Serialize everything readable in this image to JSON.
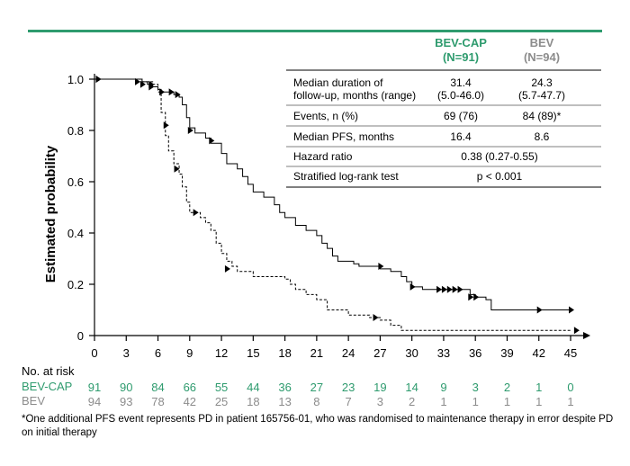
{
  "colors": {
    "bevcap": "#2e9b6e",
    "bev": "#8c8c8c",
    "rule": "#2e9b6e"
  },
  "chart_data": {
    "type": "line",
    "ylabel": "Estimated probability",
    "xlim": [
      0,
      45
    ],
    "ylim": [
      0,
      1.0
    ],
    "x_ticks": [
      "0",
      "3",
      "6",
      "9",
      "12",
      "15",
      "18",
      "21",
      "24",
      "27",
      "30",
      "33",
      "36",
      "39",
      "42",
      "45"
    ],
    "y_ticks": [
      "0",
      "0.2",
      "0.4",
      "0.6",
      "0.8",
      "1.0"
    ],
    "series": [
      {
        "name": "BEV-CAP",
        "style": "solid",
        "points": [
          [
            0,
            1.0
          ],
          [
            4,
            1.0
          ],
          [
            4.5,
            0.99
          ],
          [
            5,
            0.98
          ],
          [
            5.5,
            0.97
          ],
          [
            6,
            0.96
          ],
          [
            6.3,
            0.95
          ],
          [
            7,
            0.95
          ],
          [
            7.5,
            0.94
          ],
          [
            8,
            0.93
          ],
          [
            8.3,
            0.9
          ],
          [
            8.7,
            0.85
          ],
          [
            9,
            0.81
          ],
          [
            9.5,
            0.79
          ],
          [
            10.5,
            0.77
          ],
          [
            11,
            0.75
          ],
          [
            12,
            0.71
          ],
          [
            12.5,
            0.67
          ],
          [
            13.5,
            0.65
          ],
          [
            14,
            0.62
          ],
          [
            14.5,
            0.59
          ],
          [
            15,
            0.56
          ],
          [
            16,
            0.54
          ],
          [
            17,
            0.51
          ],
          [
            17.5,
            0.48
          ],
          [
            18,
            0.46
          ],
          [
            19,
            0.43
          ],
          [
            20,
            0.41
          ],
          [
            21,
            0.39
          ],
          [
            21.5,
            0.36
          ],
          [
            22,
            0.34
          ],
          [
            22.5,
            0.31
          ],
          [
            23,
            0.29
          ],
          [
            24.5,
            0.28
          ],
          [
            25,
            0.27
          ],
          [
            27,
            0.26
          ],
          [
            28,
            0.25
          ],
          [
            29,
            0.23
          ],
          [
            29.5,
            0.21
          ],
          [
            30,
            0.19
          ],
          [
            31,
            0.18
          ],
          [
            33,
            0.18
          ],
          [
            35,
            0.18
          ],
          [
            35.5,
            0.16
          ],
          [
            36,
            0.15
          ],
          [
            37,
            0.14
          ],
          [
            37.5,
            0.1
          ],
          [
            45,
            0.1
          ]
        ],
        "censored": [
          [
            0.3,
            1.0
          ],
          [
            4,
            0.99
          ],
          [
            4.5,
            0.98
          ],
          [
            5.3,
            0.97
          ],
          [
            6.3,
            0.95
          ],
          [
            7.2,
            0.95
          ],
          [
            7.8,
            0.94
          ],
          [
            9,
            0.8
          ],
          [
            11,
            0.76
          ],
          [
            27,
            0.27
          ],
          [
            30,
            0.19
          ],
          [
            32.5,
            0.18
          ],
          [
            33,
            0.18
          ],
          [
            33.5,
            0.18
          ],
          [
            34,
            0.18
          ],
          [
            34.5,
            0.18
          ],
          [
            35.5,
            0.15
          ],
          [
            36,
            0.15
          ],
          [
            42,
            0.1
          ],
          [
            45,
            0.1
          ]
        ]
      },
      {
        "name": "BEV",
        "style": "dashed",
        "points": [
          [
            0,
            1.0
          ],
          [
            4,
            1.0
          ],
          [
            4.5,
            0.99
          ],
          [
            5.5,
            0.98
          ],
          [
            6,
            0.95
          ],
          [
            6.3,
            0.87
          ],
          [
            6.7,
            0.78
          ],
          [
            7,
            0.72
          ],
          [
            7.5,
            0.67
          ],
          [
            8,
            0.63
          ],
          [
            8.3,
            0.58
          ],
          [
            8.7,
            0.52
          ],
          [
            9,
            0.48
          ],
          [
            10,
            0.46
          ],
          [
            10.5,
            0.44
          ],
          [
            11,
            0.41
          ],
          [
            11.5,
            0.36
          ],
          [
            12,
            0.32
          ],
          [
            12.5,
            0.29
          ],
          [
            13,
            0.27
          ],
          [
            13.5,
            0.25
          ],
          [
            15,
            0.23
          ],
          [
            18,
            0.22
          ],
          [
            18.5,
            0.2
          ],
          [
            19,
            0.18
          ],
          [
            20,
            0.16
          ],
          [
            21,
            0.14
          ],
          [
            22,
            0.1
          ],
          [
            24,
            0.08
          ],
          [
            26,
            0.07
          ],
          [
            27,
            0.06
          ],
          [
            28,
            0.04
          ],
          [
            29,
            0.02
          ],
          [
            33,
            0.02
          ],
          [
            36,
            0.02
          ],
          [
            45,
            0.02
          ]
        ],
        "censored": [
          [
            0.3,
            1.0
          ],
          [
            5.3,
            0.98
          ],
          [
            6.7,
            0.82
          ],
          [
            7.7,
            0.65
          ],
          [
            9.5,
            0.48
          ],
          [
            12.5,
            0.26
          ],
          [
            26.5,
            0.07
          ],
          [
            45.5,
            0.02
          ]
        ]
      }
    ],
    "at_risk": {
      "title": "No. at risk",
      "rows": [
        {
          "label": "BEV-CAP",
          "values": [
            "91",
            "90",
            "84",
            "66",
            "55",
            "44",
            "36",
            "27",
            "23",
            "19",
            "14",
            "9",
            "3",
            "2",
            "1",
            "0"
          ]
        },
        {
          "label": "BEV",
          "values": [
            "94",
            "93",
            "78",
            "42",
            "25",
            "18",
            "13",
            "8",
            "7",
            "3",
            "2",
            "1",
            "1",
            "1",
            "1",
            "1"
          ]
        }
      ]
    }
  },
  "table": {
    "col1_head": "BEV-CAP\n(N=91)",
    "col1_head_l1": "BEV-CAP",
    "col1_head_l2": "(N=91)",
    "col2_head_l1": "BEV",
    "col2_head_l2": "(N=94)",
    "rows": [
      {
        "label_l1": "Median duration of",
        "label_l2": "follow-up, months (range)",
        "v1_l1": "31.4",
        "v1_l2": "(5.0-46.0)",
        "v2_l1": "24.3",
        "v2_l2": "(5.7-47.7)"
      },
      {
        "label": "Events, n (%)",
        "v1": "69 (76)",
        "v2": "84 (89)*"
      },
      {
        "label": "Median PFS, months",
        "v1": "16.4",
        "v2": "8.6"
      },
      {
        "label": "Hazard ratio",
        "span": "0.38 (0.27-0.55)"
      },
      {
        "label": "Stratified log-rank test",
        "span": "p < 0.001"
      }
    ]
  },
  "footnote": "*One additional PFS event represents PD in patient 165756-01, who was randomised to maintenance therapy in error despite PD on initial therapy"
}
